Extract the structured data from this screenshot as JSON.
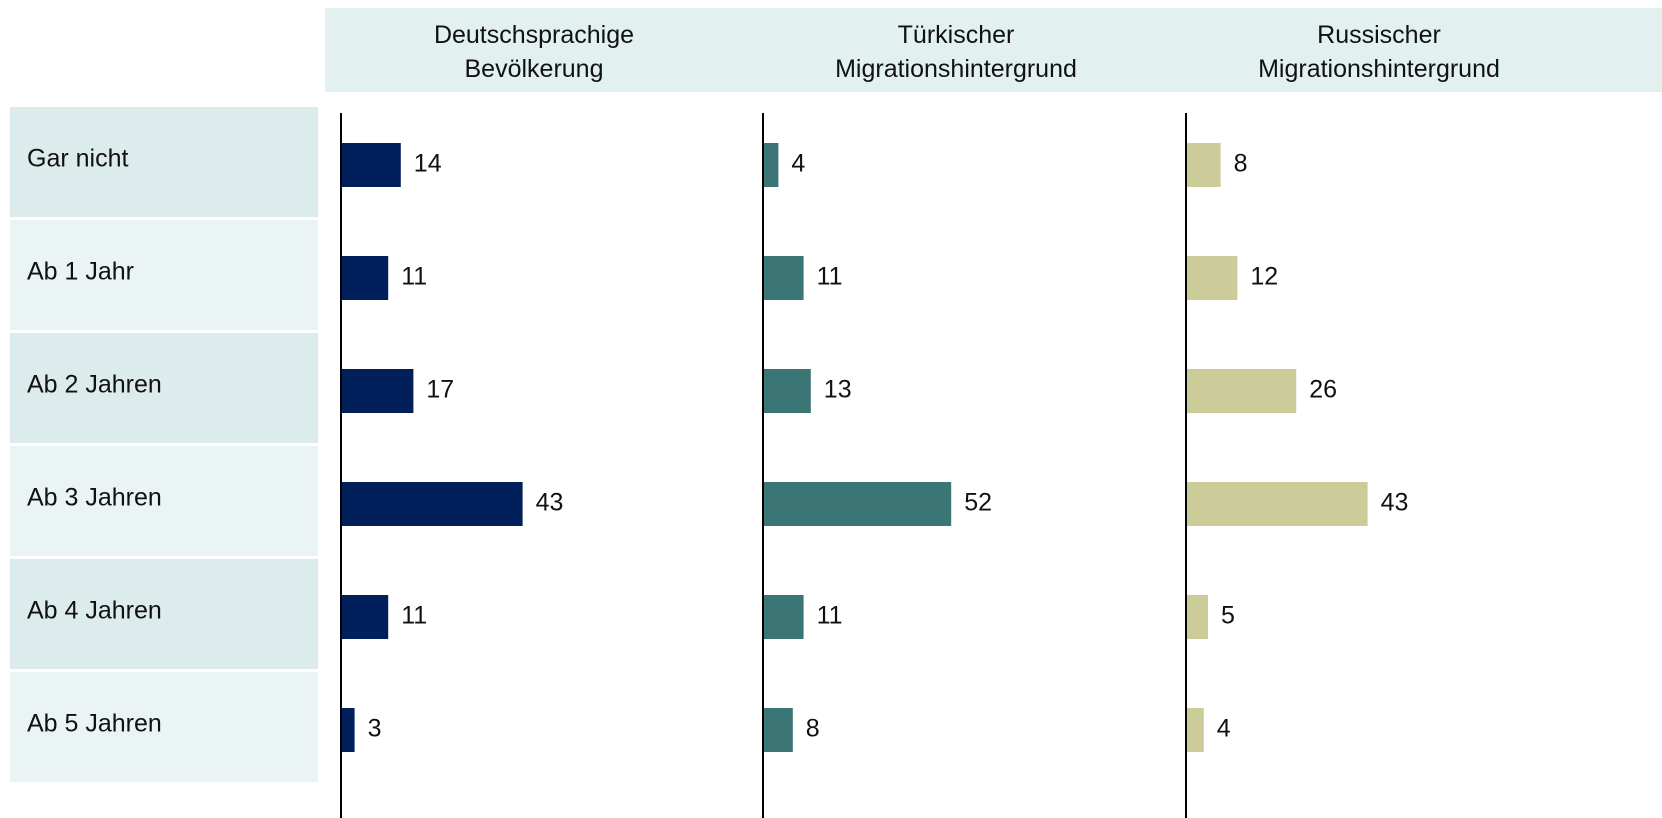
{
  "chart_data": {
    "type": "bar",
    "orientation": "horizontal",
    "categories": [
      "Gar nicht",
      "Ab 1 Jahr",
      "Ab 2 Jahren",
      "Ab 3 Jahren",
      "Ab 4 Jahren",
      "Ab 5 Jahren"
    ],
    "series": [
      {
        "name": "Deutschsprachige Bevölkerung",
        "color": "#001f5b",
        "values": [
          14,
          11,
          17,
          43,
          11,
          3
        ]
      },
      {
        "name": "Türkischer Migrationshintergrund",
        "color": "#3b7575",
        "values": [
          4,
          11,
          13,
          52,
          11,
          8
        ]
      },
      {
        "name": "Russischer Migrationshintergrund",
        "color": "#cccb9a",
        "values": [
          8,
          12,
          26,
          43,
          5,
          4
        ]
      }
    ]
  }
}
